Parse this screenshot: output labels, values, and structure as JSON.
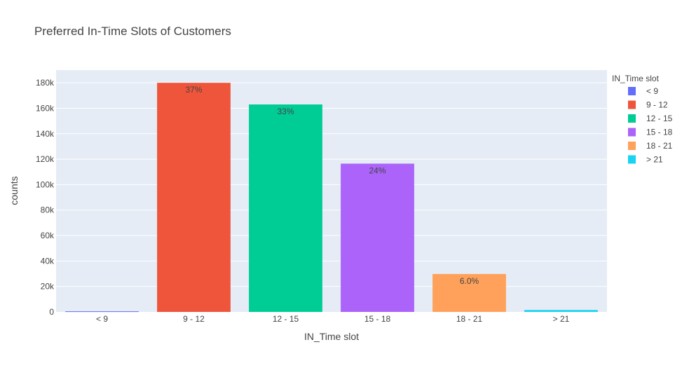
{
  "chart_data": {
    "type": "bar",
    "title": "Preferred In-Time Slots of Customers",
    "xlabel": "IN_Time slot",
    "ylabel": "counts",
    "categories": [
      "< 9",
      "9 - 12",
      "12 - 15",
      "15 - 18",
      "18 - 21",
      "> 21"
    ],
    "values": [
      500,
      180000,
      163000,
      116500,
      29800,
      1500
    ],
    "bar_labels": [
      "",
      "37%",
      "33%",
      "24%",
      "6.0%",
      ""
    ],
    "colors": [
      "#636efa",
      "#ef553b",
      "#00cc96",
      "#ab63fa",
      "#ffa15a",
      "#19d3f3"
    ],
    "ylim": [
      0,
      190000
    ],
    "yticks": [
      0,
      20000,
      40000,
      60000,
      80000,
      100000,
      120000,
      140000,
      160000,
      180000
    ],
    "ytick_labels": [
      "0",
      "20k",
      "40k",
      "60k",
      "80k",
      "100k",
      "120k",
      "140k",
      "160k",
      "180k"
    ],
    "grid": true,
    "plot_background": "#e5ecf6",
    "legend": {
      "title": "IN_Time slot",
      "position": "top-right",
      "entries": [
        "< 9",
        "9 - 12",
        "12 - 15",
        "15 - 18",
        "18 - 21",
        "> 21"
      ]
    }
  }
}
